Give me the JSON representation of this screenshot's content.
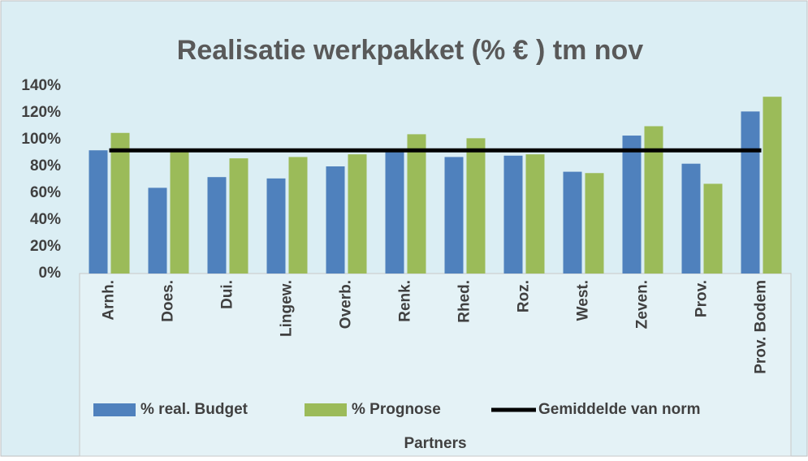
{
  "chart_data": {
    "type": "bar",
    "title": "Realisatie werkpakket (% € ) tm nov",
    "x_label": "Partners",
    "categories": [
      "Arnh.",
      "Does.",
      "Dui.",
      "Lingew.",
      "Overb.",
      "Renk.",
      "Rhed.",
      "Roz.",
      "West.",
      "Zeven.",
      "Prov.",
      "Prov. Bodem"
    ],
    "series": [
      {
        "name": "% real. Budget",
        "color": "#4f81bd",
        "type": "bar",
        "values": [
          92,
          64,
          72,
          71,
          80,
          92,
          87,
          88,
          76,
          103,
          82,
          121
        ]
      },
      {
        "name": "% Prognose",
        "color": "#9bbb59",
        "type": "bar",
        "values": [
          105,
          92,
          86,
          87,
          89,
          104,
          101,
          89,
          75,
          110,
          67,
          132
        ]
      },
      {
        "name": "Gemiddelde van norm",
        "color": "#000000",
        "type": "line",
        "values": [
          92,
          92,
          92,
          92,
          92,
          92,
          92,
          92,
          92,
          92,
          92,
          92
        ]
      }
    ],
    "ylim": [
      0,
      140
    ],
    "yticks": [
      {
        "value": 0,
        "label": "0%"
      },
      {
        "value": 20,
        "label": "20%"
      },
      {
        "value": 40,
        "label": "40%"
      },
      {
        "value": 60,
        "label": "60%"
      },
      {
        "value": 80,
        "label": "80%"
      },
      {
        "value": 100,
        "label": "100%"
      },
      {
        "value": 120,
        "label": "120%"
      },
      {
        "value": 140,
        "label": "140%"
      }
    ],
    "grid": false,
    "legend": "bottom"
  }
}
